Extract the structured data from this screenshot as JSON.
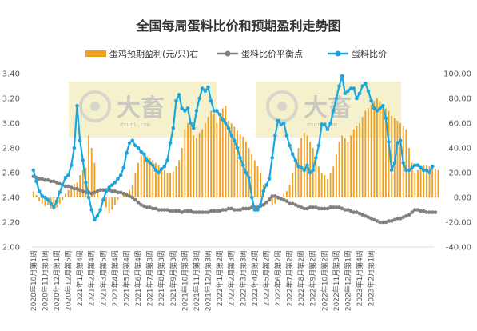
{
  "chart_data": {
    "type": "line",
    "title": "全国每周蛋料比价和预期盈利走势图",
    "colors": {
      "profit": "#f0a020",
      "breakeven": "#808080",
      "ratio": "#1ba6e0",
      "watermark_box": "#f5efc4"
    },
    "legend": {
      "placement": "top",
      "items": [
        {
          "label": "蛋鸡预期盈利(元/只)右",
          "marker": "bar"
        },
        {
          "label": "蛋料比价平衡点",
          "marker": "line-dot"
        },
        {
          "label": "蛋料比价",
          "marker": "line-dot"
        }
      ]
    },
    "watermark": {
      "brand": "大畜",
      "url": "dxurl.com"
    },
    "y_left": {
      "min": 2.0,
      "max": 3.4,
      "step": 0.2,
      "tick_labels": [
        "2.00",
        "2.20",
        "2.40",
        "2.60",
        "2.80",
        "3.00",
        "3.20",
        "3.40"
      ]
    },
    "y_right": {
      "min": -40,
      "max": 100,
      "step": 20,
      "tick_labels": [
        "-40.00",
        "-20.00",
        "0.00",
        "20.00",
        "40.00",
        "60.00",
        "80.00",
        "100.00"
      ]
    },
    "grid": false,
    "x_tick_every": 4,
    "x_labels": [
      "2020年10月第1周",
      "2020年11月第1周",
      "2020年12月第1周",
      "2020年12月第5周",
      "2021年1月第4周",
      "2021年2月第4周",
      "2021年3月第5周",
      "2021年4月第4周",
      "2021年5月第4周",
      "2021年6月第4周",
      "2021年7月第3周",
      "2021年8月第3周",
      "2021年9月第3周",
      "2021年10月第3周",
      "2021年11月第3周",
      "2021年12月第3周",
      "2022年1月第2周",
      "2022年2月第3周",
      "2022年3月第3周",
      "2022年4月第2周",
      "2022年5月第2周",
      "2022年6月第2周",
      "2022年7月第2周",
      "2022年8月第2周",
      "2022年9月第2周",
      "2022年10月第2周",
      "2022年11月第3周",
      "2022年12月第1周",
      "2023年1月第4周",
      "2023年2月第1周"
    ],
    "series": [
      {
        "name": "蛋鸡预期盈利(元/只)右",
        "kind": "bar",
        "axis": "right",
        "values": [
          5,
          2,
          -3,
          -5,
          -7,
          -6,
          -9,
          -10,
          -8,
          -5,
          -2,
          3,
          6,
          8,
          11,
          12,
          18,
          22,
          24,
          50,
          40,
          28,
          5,
          0,
          -3,
          -8,
          -13,
          -10,
          -6,
          -2,
          0,
          2,
          4,
          6,
          10,
          20,
          28,
          34,
          36,
          33,
          32,
          30,
          28,
          26,
          24,
          22,
          20,
          20,
          21,
          25,
          30,
          40,
          55,
          60,
          58,
          50,
          48,
          52,
          55,
          60,
          65,
          70,
          68,
          60,
          68,
          72,
          74,
          62,
          60,
          57,
          54,
          51,
          49,
          45,
          40,
          35,
          30,
          25,
          20,
          10,
          0,
          -3,
          -6,
          -5,
          -2,
          0,
          3,
          5,
          10,
          20,
          30,
          40,
          48,
          52,
          50,
          45,
          40,
          32,
          25,
          20,
          18,
          15,
          20,
          25,
          35,
          45,
          50,
          48,
          45,
          50,
          55,
          58,
          60,
          65,
          70,
          72,
          75,
          78,
          80,
          78,
          75,
          72,
          70,
          66,
          64,
          62,
          60,
          58,
          55,
          40,
          28,
          20,
          22,
          25,
          26,
          26,
          25,
          24,
          23,
          22
        ]
      },
      {
        "name": "蛋料比价平衡点",
        "kind": "line",
        "axis": "left",
        "values": [
          2.57,
          2.56,
          2.55,
          2.55,
          2.54,
          2.54,
          2.53,
          2.53,
          2.52,
          2.51,
          2.5,
          2.49,
          2.49,
          2.48,
          2.47,
          2.47,
          2.46,
          2.45,
          2.44,
          2.44,
          2.43,
          2.44,
          2.45,
          2.46,
          2.46,
          2.46,
          2.46,
          2.45,
          2.45,
          2.44,
          2.44,
          2.43,
          2.42,
          2.41,
          2.4,
          2.38,
          2.36,
          2.34,
          2.33,
          2.32,
          2.32,
          2.31,
          2.31,
          2.3,
          2.3,
          2.3,
          2.3,
          2.29,
          2.29,
          2.29,
          2.29,
          2.28,
          2.29,
          2.29,
          2.29,
          2.28,
          2.28,
          2.28,
          2.28,
          2.28,
          2.28,
          2.29,
          2.29,
          2.29,
          2.29,
          2.3,
          2.3,
          2.31,
          2.31,
          2.3,
          2.3,
          2.3,
          2.31,
          2.31,
          2.31,
          2.32,
          2.32,
          2.32,
          2.33,
          2.34,
          2.36,
          2.38,
          2.41,
          2.41,
          2.4,
          2.39,
          2.38,
          2.37,
          2.35,
          2.35,
          2.34,
          2.33,
          2.32,
          2.31,
          2.31,
          2.32,
          2.32,
          2.32,
          2.31,
          2.31,
          2.31,
          2.31,
          2.32,
          2.32,
          2.32,
          2.32,
          2.31,
          2.3,
          2.3,
          2.29,
          2.28,
          2.28,
          2.27,
          2.26,
          2.25,
          2.24,
          2.23,
          2.22,
          2.21,
          2.2,
          2.2,
          2.2,
          2.21,
          2.21,
          2.22,
          2.23,
          2.23,
          2.24,
          2.25,
          2.26,
          2.28,
          2.3,
          2.3,
          2.29,
          2.29,
          2.28,
          2.28,
          2.28,
          2.28
        ]
      },
      {
        "name": "蛋料比价",
        "kind": "line",
        "axis": "left",
        "values": [
          2.62,
          2.53,
          2.45,
          2.41,
          2.4,
          2.38,
          2.35,
          2.32,
          2.37,
          2.44,
          2.5,
          2.56,
          2.58,
          2.66,
          2.8,
          3.14,
          2.86,
          2.7,
          2.52,
          2.4,
          2.3,
          2.22,
          2.25,
          2.3,
          2.38,
          2.45,
          2.48,
          2.5,
          2.52,
          2.55,
          2.58,
          2.64,
          2.76,
          2.84,
          2.86,
          2.82,
          2.8,
          2.77,
          2.75,
          2.7,
          2.68,
          2.66,
          2.62,
          2.6,
          2.63,
          2.65,
          2.7,
          2.84,
          2.96,
          3.18,
          3.23,
          3.12,
          3.1,
          3.12,
          3.0,
          2.96,
          3.1,
          3.2,
          3.28,
          3.26,
          3.29,
          3.18,
          3.1,
          3.1,
          3.07,
          3.03,
          3.0,
          2.96,
          2.9,
          2.86,
          2.8,
          2.72,
          2.66,
          2.6,
          2.56,
          2.4,
          2.3,
          2.3,
          2.34,
          2.45,
          2.5,
          2.55,
          2.72,
          2.9,
          3.02,
          2.99,
          3.0,
          2.9,
          2.82,
          2.75,
          2.7,
          2.65,
          2.64,
          2.62,
          2.66,
          2.6,
          2.62,
          2.72,
          2.82,
          2.99,
          2.99,
          2.95,
          3.0,
          3.1,
          3.2,
          3.3,
          3.38,
          3.24,
          3.26,
          3.28,
          3.28,
          3.2,
          3.24,
          3.3,
          3.32,
          3.26,
          3.18,
          3.12,
          3.1,
          3.12,
          3.14,
          3.04,
          2.85,
          2.62,
          2.68,
          2.84,
          2.86,
          2.68,
          2.62,
          2.62,
          2.64,
          2.66,
          2.66,
          2.64,
          2.62,
          2.62,
          2.6,
          2.65
        ]
      }
    ]
  }
}
